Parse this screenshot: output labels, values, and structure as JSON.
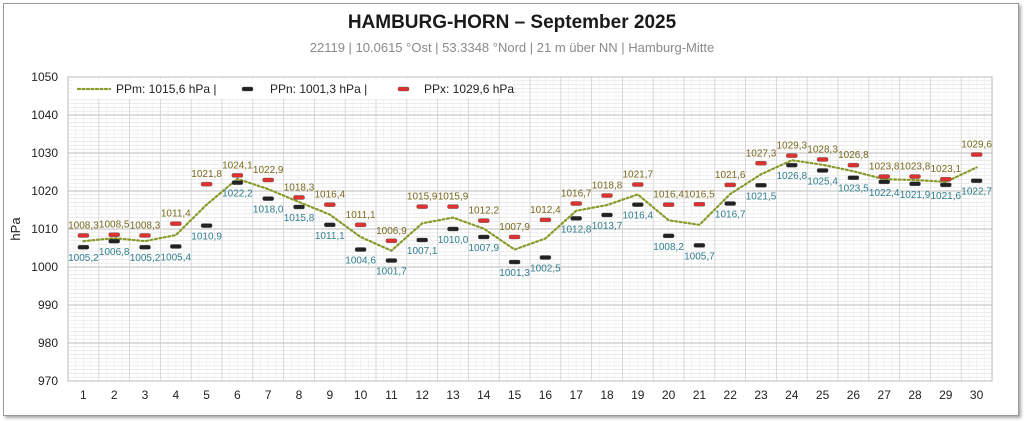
{
  "title": "HAMBURG-HORN   –   September 2025",
  "subtitle": "22119  |  10.0615 °Ost  |  53.3348 °Nord  | 21 m über NN  |  Hamburg-Mitte",
  "colors": {
    "mean": "#8a9a2a",
    "min": "#222222",
    "max": "#e03030",
    "label_max": "#7a6a1e",
    "label_min": "#2f7f8f"
  },
  "chart_data": {
    "type": "line",
    "ylabel": "hPa",
    "ylim": [
      970,
      1050
    ],
    "yticks": [
      970,
      980,
      990,
      1000,
      1010,
      1020,
      1030,
      1040,
      1050
    ],
    "grid": true,
    "legend_position": "top-left",
    "x": [
      1,
      2,
      3,
      4,
      5,
      6,
      7,
      8,
      9,
      10,
      11,
      12,
      13,
      14,
      15,
      16,
      17,
      18,
      19,
      20,
      21,
      22,
      23,
      24,
      25,
      26,
      27,
      28,
      29,
      30
    ],
    "legend": [
      {
        "key": "mean",
        "label": "PPm: 1015,6 hPa  |"
      },
      {
        "key": "min",
        "label": "PPn: 1001,3 hPa  |"
      },
      {
        "key": "max",
        "label": "PPx: 1029,6 hPa"
      }
    ],
    "series": [
      {
        "key": "max",
        "values": [
          1008.3,
          1008.5,
          1008.3,
          1011.4,
          1021.8,
          1024.1,
          1022.9,
          1018.3,
          1016.4,
          1011.1,
          1006.9,
          1015.9,
          1015.9,
          1012.2,
          1007.9,
          1012.4,
          1016.7,
          1018.8,
          1021.7,
          1016.4,
          1016.5,
          1021.6,
          1027.3,
          1029.3,
          1028.3,
          1026.8,
          1023.8,
          1023.8,
          1023.1,
          1029.6
        ],
        "labels": [
          "1008,3",
          "1008,5",
          "1008,3",
          "1011,4",
          "1021,8",
          "1024,1",
          "1022,9",
          "1018,3",
          "1016,4",
          "1011,1",
          "1006,9",
          "1015,9",
          "1015,9",
          "1012,2",
          "1007,9",
          "1012,4",
          "1016,7",
          "1018,8",
          "1021,7",
          "1016,4",
          "1016,5",
          "1021,6",
          "1027,3",
          "1029,3",
          "1028,3",
          "1026,8",
          "1023,8",
          "1023,8",
          "1023,1",
          "1029,6"
        ]
      },
      {
        "key": "min",
        "values": [
          1005.2,
          1006.8,
          1005.2,
          1005.4,
          1010.9,
          1022.2,
          1018.0,
          1015.8,
          1011.1,
          1004.6,
          1001.7,
          1007.1,
          1010.0,
          1007.9,
          1001.3,
          1002.5,
          1012.8,
          1013.7,
          1016.4,
          1008.2,
          1005.7,
          1016.7,
          1021.5,
          1026.8,
          1025.4,
          1023.5,
          1022.4,
          1021.9,
          1021.6,
          1022.7
        ],
        "labels": [
          "1005,2",
          "1006,8",
          "1005,2",
          "1005,4",
          "1010,9",
          "1022,2",
          "1018,0",
          "1015,8",
          "1011,1",
          "1004,6",
          "1001,7",
          "1007,1",
          "1010,0",
          "1007,9",
          "1001,3",
          "1002,5",
          "1012,8",
          "1013,7",
          "1016,4",
          "1008,2",
          "1005,7",
          "1016,7",
          "1021,5",
          "1026,8",
          "1025,4",
          "1023,5",
          "1022,4",
          "1021,9",
          "1021,6",
          "1022,7"
        ]
      },
      {
        "key": "mean",
        "values": [
          1006.8,
          1007.6,
          1006.8,
          1008.4,
          1016.4,
          1023.2,
          1020.5,
          1017.1,
          1013.8,
          1007.9,
          1004.3,
          1011.5,
          1013.0,
          1010.1,
          1004.6,
          1007.5,
          1014.8,
          1016.3,
          1019.1,
          1012.3,
          1011.1,
          1019.2,
          1024.4,
          1028.1,
          1026.9,
          1025.2,
          1023.1,
          1022.9,
          1022.4,
          1026.2
        ]
      }
    ]
  }
}
